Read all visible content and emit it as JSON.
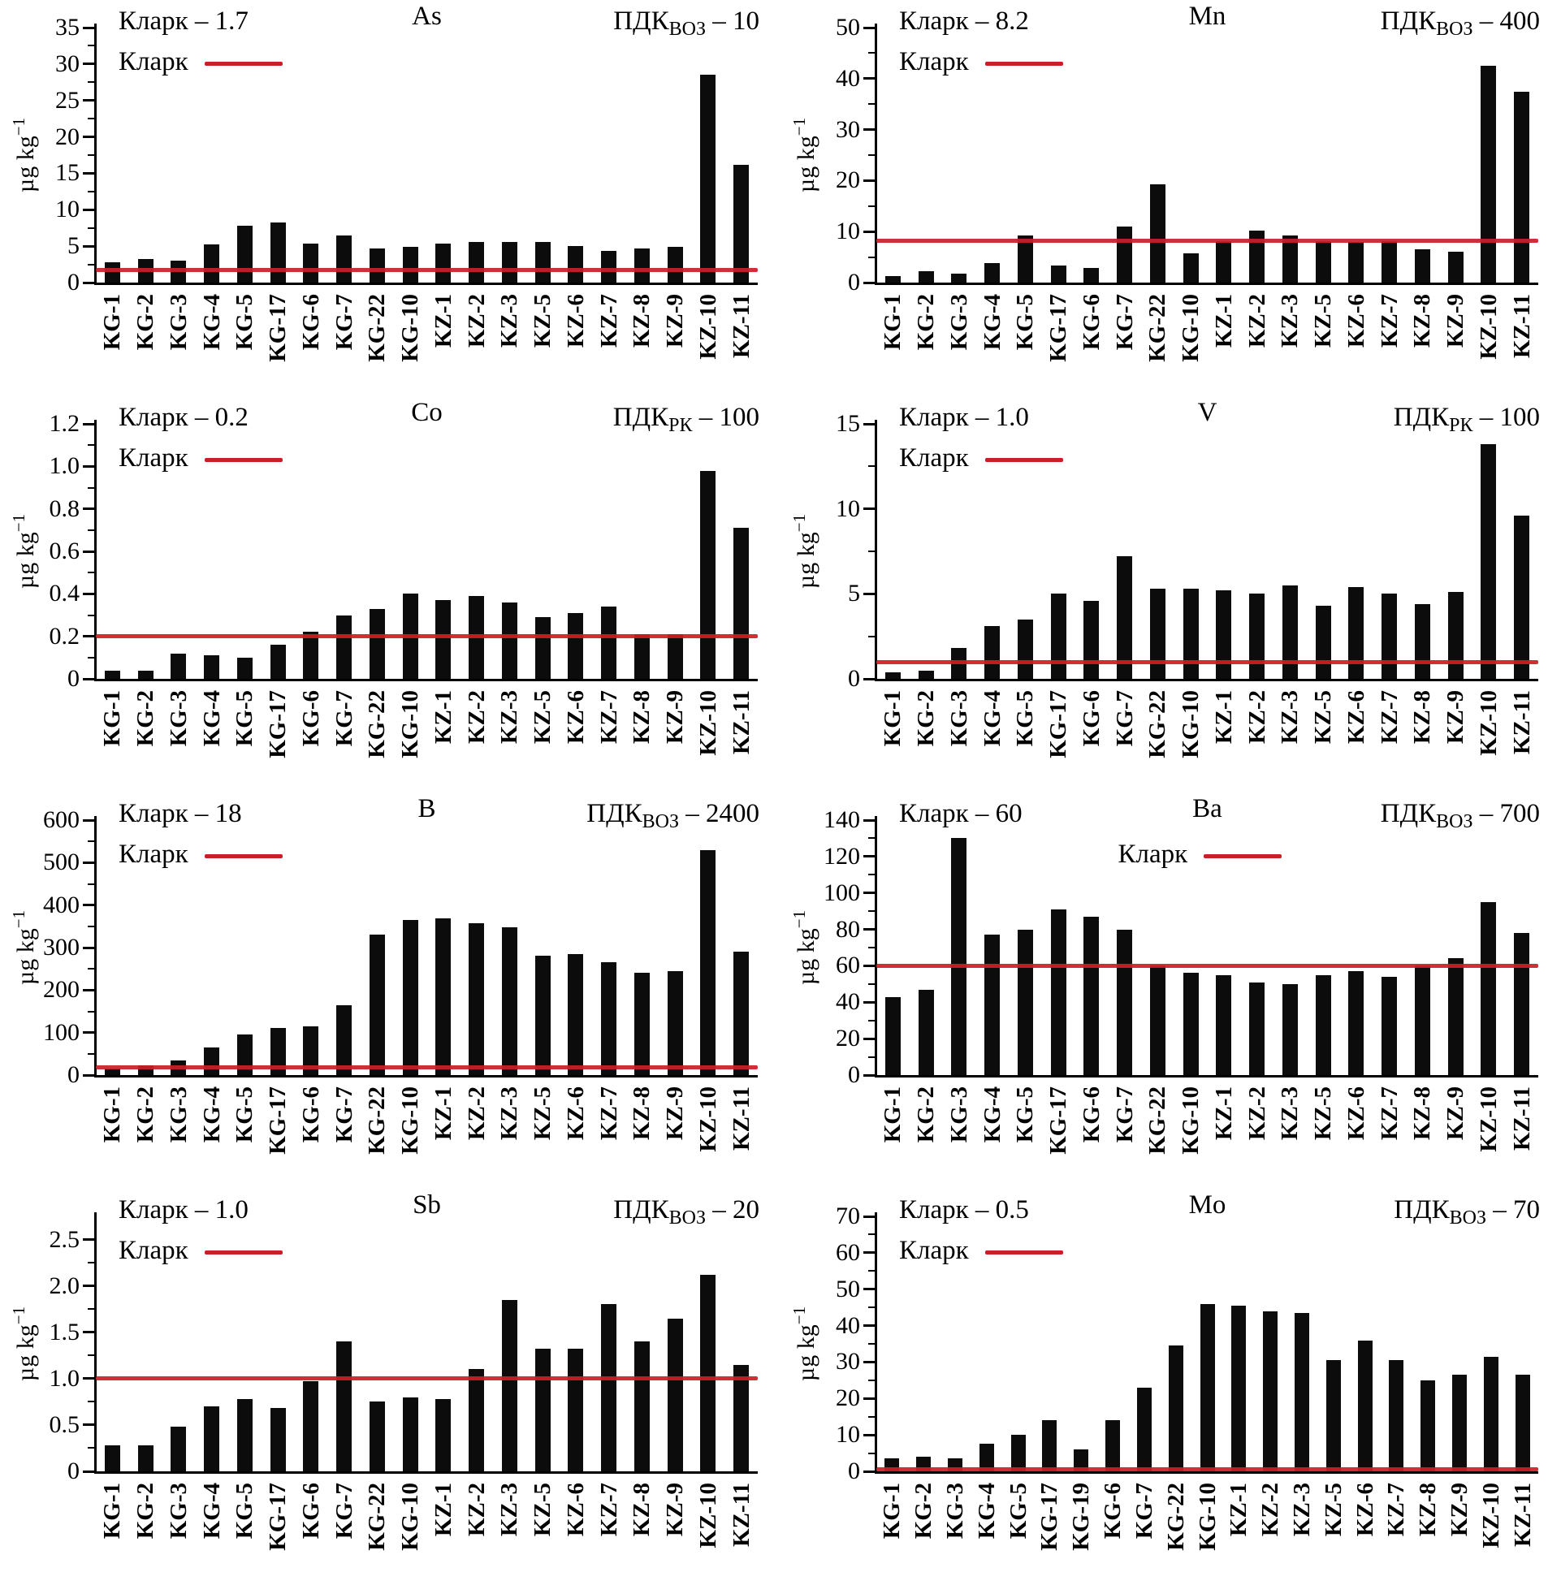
{
  "figure": {
    "legend_label": "Кларк",
    "ylabel_base": "µg kg",
    "ylabel_exp": "−1",
    "pdk_base": "ПДК",
    "accent_red": "#cb1f28",
    "bar_color": "#0c0c0c"
  },
  "chart_data": [
    {
      "type": "bar",
      "title": "As",
      "clarke_label": "Кларк – 1.7",
      "clarke_value": 1.7,
      "pdk_sub": "ВОЗ",
      "pdk_value": "10",
      "ylabel": "µg kg−1",
      "ymax": 35,
      "yticks": [
        "0",
        "5",
        "10",
        "15",
        "20",
        "25",
        "30",
        "35"
      ],
      "legend_pos": "left",
      "categories": [
        "KG-1",
        "KG-2",
        "KG-3",
        "KG-4",
        "KG-5",
        "KG-17",
        "KG-6",
        "KG-7",
        "KG-22",
        "KG-10",
        "KZ-1",
        "KZ-2",
        "KZ-3",
        "KZ-5",
        "KZ-6",
        "KZ-7",
        "KZ-8",
        "KZ-9",
        "KZ-10",
        "KZ-11"
      ],
      "values": [
        2.8,
        3.2,
        3.0,
        5.2,
        7.8,
        8.3,
        5.3,
        6.5,
        4.7,
        4.9,
        5.4,
        5.6,
        5.6,
        5.6,
        5.0,
        4.4,
        4.7,
        4.9,
        28.5,
        16.2
      ]
    },
    {
      "type": "bar",
      "title": "Mn",
      "clarke_label": "Кларк – 8.2",
      "clarke_value": 8.2,
      "pdk_sub": "ВОЗ",
      "pdk_value": "400",
      "ylabel": "µg kg−1",
      "ymax": 50,
      "yticks": [
        "0",
        "10",
        "20",
        "30",
        "40",
        "50"
      ],
      "legend_pos": "left",
      "categories": [
        "KG-1",
        "KG-2",
        "KG-3",
        "KG-4",
        "KG-5",
        "KG-17",
        "KG-6",
        "KG-7",
        "KG-22",
        "KG-10",
        "KZ-1",
        "KZ-2",
        "KZ-3",
        "KZ-5",
        "KZ-6",
        "KZ-7",
        "KZ-8",
        "KZ-9",
        "KZ-10",
        "KZ-11"
      ],
      "values": [
        1.2,
        2.2,
        1.8,
        3.8,
        9.2,
        3.3,
        2.8,
        11.0,
        19.2,
        5.8,
        8.2,
        10.2,
        9.3,
        8.2,
        8.0,
        8.2,
        6.5,
        6.0,
        42.5,
        37.5
      ]
    },
    {
      "type": "bar",
      "title": "Co",
      "clarke_label": "Кларк – 0.2",
      "clarke_value": 0.2,
      "pdk_sub": "РК",
      "pdk_value": "100",
      "ylabel": "µg kg−1",
      "ymax": 1.2,
      "yticks": [
        "0",
        "0.2",
        "0.4",
        "0.6",
        "0.8",
        "1.0",
        "1.2"
      ],
      "legend_pos": "left",
      "categories": [
        "KG-1",
        "KG-2",
        "KG-3",
        "KG-4",
        "KG-5",
        "KG-17",
        "KG-6",
        "KG-7",
        "KG-22",
        "KG-10",
        "KZ-1",
        "KZ-2",
        "KZ-3",
        "KZ-5",
        "KZ-6",
        "KZ-7",
        "KZ-8",
        "KZ-9",
        "KZ-10",
        "KZ-11"
      ],
      "values": [
        0.04,
        0.04,
        0.12,
        0.11,
        0.1,
        0.16,
        0.22,
        0.3,
        0.33,
        0.4,
        0.37,
        0.39,
        0.36,
        0.29,
        0.31,
        0.34,
        0.21,
        0.21,
        0.98,
        0.71
      ]
    },
    {
      "type": "bar",
      "title": "V",
      "clarke_label": "Кларк – 1.0",
      "clarke_value": 1.0,
      "pdk_sub": "РК",
      "pdk_value": "100",
      "ylabel": "µg kg−1",
      "ymax": 15,
      "yticks": [
        "0",
        "5",
        "10",
        "15"
      ],
      "legend_pos": "left",
      "categories": [
        "KG-1",
        "KG-2",
        "KG-3",
        "KG-4",
        "KG-5",
        "KG-17",
        "KG-6",
        "KG-7",
        "KG-22",
        "KG-10",
        "KZ-1",
        "KZ-2",
        "KZ-3",
        "KZ-5",
        "KZ-6",
        "KZ-7",
        "KZ-8",
        "KZ-9",
        "KZ-10",
        "KZ-11"
      ],
      "values": [
        0.4,
        0.5,
        1.8,
        3.1,
        3.5,
        5.0,
        4.6,
        7.2,
        5.3,
        5.3,
        5.2,
        5.0,
        5.5,
        4.3,
        5.4,
        5.0,
        4.4,
        5.1,
        13.8,
        9.6
      ]
    },
    {
      "type": "bar",
      "title": "B",
      "clarke_label": "Кларк – 18",
      "clarke_value": 18,
      "pdk_sub": "ВОЗ",
      "pdk_value": "2400",
      "ylabel": "µg kg−1",
      "ymax": 600,
      "yticks": [
        "0",
        "100",
        "200",
        "300",
        "400",
        "500",
        "600"
      ],
      "legend_pos": "left",
      "categories": [
        "KG-1",
        "KG-2",
        "KG-3",
        "KG-4",
        "KG-5",
        "KG-17",
        "KG-6",
        "KG-7",
        "KG-22",
        "KG-10",
        "KZ-1",
        "KZ-2",
        "KZ-3",
        "KZ-5",
        "KZ-6",
        "KZ-7",
        "KZ-8",
        "KZ-9",
        "KZ-10",
        "KZ-11"
      ],
      "values": [
        15,
        22,
        35,
        65,
        95,
        110,
        115,
        165,
        330,
        365,
        368,
        358,
        348,
        280,
        285,
        265,
        240,
        245,
        530,
        290
      ]
    },
    {
      "type": "bar",
      "title": "Ba",
      "clarke_label": "Кларк – 60",
      "clarke_value": 60,
      "pdk_sub": "ВОЗ",
      "pdk_value": "700",
      "ylabel": "µg kg−1",
      "ymax": 140,
      "yticks": [
        "0",
        "20",
        "40",
        "60",
        "80",
        "100",
        "120",
        "140"
      ],
      "legend_pos": "center",
      "categories": [
        "KG-1",
        "KG-2",
        "KG-3",
        "KG-4",
        "KG-5",
        "KG-17",
        "KG-6",
        "KG-7",
        "KG-22",
        "KG-10",
        "KZ-1",
        "KZ-2",
        "KZ-3",
        "KZ-5",
        "KZ-6",
        "KZ-7",
        "KZ-8",
        "KZ-9",
        "KZ-10",
        "KZ-11"
      ],
      "values": [
        43,
        47,
        130,
        77,
        80,
        91,
        87,
        80,
        60,
        56,
        55,
        51,
        50,
        55,
        57,
        54,
        60,
        64,
        95,
        78
      ]
    },
    {
      "type": "bar",
      "title": "Sb",
      "clarke_label": "Кларк – 1.0",
      "clarke_value": 1.0,
      "pdk_sub": "ВОЗ",
      "pdk_value": "20",
      "ylabel": "µg kg−1",
      "ymax": 2.75,
      "yticks": [
        "0",
        "0.5",
        "1.0",
        "1.5",
        "2.0",
        "2.5"
      ],
      "legend_pos": "left",
      "categories": [
        "KG-1",
        "KG-2",
        "KG-3",
        "KG-4",
        "KG-5",
        "KG-17",
        "KG-6",
        "KG-7",
        "KG-22",
        "KG-10",
        "KZ-1",
        "KZ-2",
        "KZ-3",
        "KZ-5",
        "KZ-6",
        "KZ-7",
        "KZ-8",
        "KZ-9",
        "KZ-10",
        "KZ-11"
      ],
      "values": [
        0.28,
        0.28,
        0.48,
        0.7,
        0.78,
        0.68,
        0.97,
        1.4,
        0.75,
        0.8,
        0.78,
        1.1,
        1.85,
        1.32,
        1.32,
        1.8,
        1.4,
        1.65,
        2.12,
        1.15
      ]
    },
    {
      "type": "bar",
      "title": "Mo",
      "clarke_label": "Кларк – 0.5",
      "clarke_value": 0.5,
      "pdk_sub": "ВОЗ",
      "pdk_value": "70",
      "ylabel": "µg kg−1",
      "ymax": 70,
      "yticks": [
        "0",
        "10",
        "20",
        "30",
        "40",
        "50",
        "60",
        "70"
      ],
      "legend_pos": "left",
      "categories": [
        "KG-1",
        "KG-2",
        "KG-3",
        "KG-4",
        "KG-5",
        "KG-17",
        "KG-19",
        "KG-6",
        "KG-7",
        "KG-22",
        "KG-10",
        "KZ-1",
        "KZ-2",
        "KZ-3",
        "KZ-5",
        "KZ-6",
        "KZ-7",
        "KZ-8",
        "KZ-9",
        "KZ-10",
        "KZ-11"
      ],
      "values": [
        3.5,
        4.0,
        3.5,
        7.5,
        10.0,
        14.0,
        6.0,
        14.0,
        23.0,
        34.5,
        46.0,
        45.5,
        44.0,
        43.5,
        30.5,
        36.0,
        30.5,
        25.0,
        26.5,
        31.5,
        26.5
      ]
    }
  ]
}
